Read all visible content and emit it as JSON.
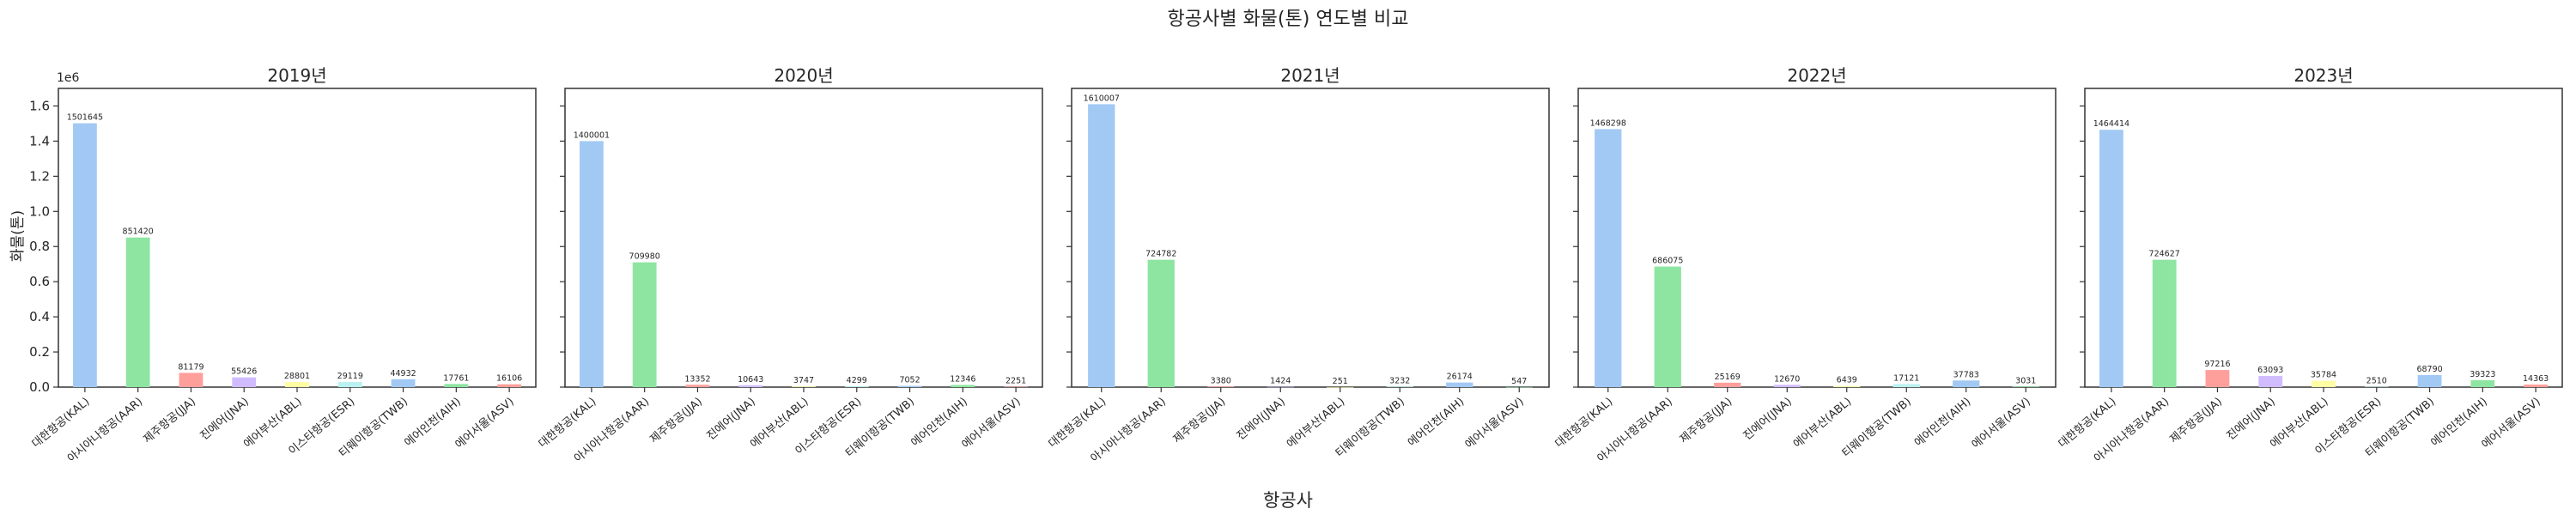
{
  "title": "항공사별 화물(톤) 연도별 비교",
  "xlabel": "항공사",
  "ylabel": "화물(톤)",
  "scale_label": "1e6",
  "y_ticks": [
    "0.0",
    "0.2",
    "0.4",
    "0.6",
    "0.8",
    "1.0",
    "1.2",
    "1.4",
    "1.6"
  ],
  "colors": [
    "#a1c9f4",
    "#8de5a1",
    "#ff9f9b",
    "#d0bbff",
    "#fffea3",
    "#b9f2f0",
    "#a1c9f4",
    "#8de5a1",
    "#ff9f9b"
  ],
  "chart_data": [
    {
      "type": "bar",
      "title": "2019년",
      "categories": [
        "대한항공(KAL)",
        "아시아나항공(AAR)",
        "제주항공(JJA)",
        "진에어(JNA)",
        "에어부산(ABL)",
        "이스타항공(ESR)",
        "티웨이항공(TWB)",
        "에어인천(AIH)",
        "에어서울(ASV)"
      ],
      "values": [
        1501645,
        851420,
        81179,
        55426,
        28801,
        29119,
        44932,
        17761,
        16106
      ],
      "ylim": [
        0,
        1700000
      ]
    },
    {
      "type": "bar",
      "title": "2020년",
      "categories": [
        "대한항공(KAL)",
        "아시아나항공(AAR)",
        "제주항공(JJA)",
        "진에어(JNA)",
        "에어부산(ABL)",
        "이스타항공(ESR)",
        "티웨이항공(TWB)",
        "에어인천(AIH)",
        "에어서울(ASV)"
      ],
      "values": [
        1400001,
        709980,
        13352,
        10643,
        3747,
        4299,
        7052,
        12346,
        2251
      ],
      "ylim": [
        0,
        1700000
      ]
    },
    {
      "type": "bar",
      "title": "2021년",
      "categories": [
        "대한항공(KAL)",
        "아시아나항공(AAR)",
        "제주항공(JJA)",
        "진에어(JNA)",
        "에어부산(ABL)",
        "티웨이항공(TWB)",
        "에어인천(AIH)",
        "에어서울(ASV)"
      ],
      "values": [
        1610007,
        724782,
        3380,
        1424,
        251,
        3232,
        26174,
        547
      ],
      "ylim": [
        0,
        1700000
      ]
    },
    {
      "type": "bar",
      "title": "2022년",
      "categories": [
        "대한항공(KAL)",
        "아시아나항공(AAR)",
        "제주항공(JJA)",
        "진에어(JNA)",
        "에어부산(ABL)",
        "티웨이항공(TWB)",
        "에어인천(AIH)",
        "에어서울(ASV)"
      ],
      "values": [
        1468298,
        686075,
        25169,
        12670,
        6439,
        17121,
        37783,
        3031
      ],
      "ylim": [
        0,
        1700000
      ]
    },
    {
      "type": "bar",
      "title": "2023년",
      "categories": [
        "대한항공(KAL)",
        "아시아나항공(AAR)",
        "제주항공(JJA)",
        "진에어(JNA)",
        "에어부산(ABL)",
        "이스타항공(ESR)",
        "티웨이항공(TWB)",
        "에어인천(AIH)",
        "에어서울(ASV)"
      ],
      "values": [
        1464414,
        724627,
        97216,
        63093,
        35784,
        2510,
        68790,
        39323,
        14363
      ],
      "ylim": [
        0,
        1700000
      ]
    }
  ]
}
